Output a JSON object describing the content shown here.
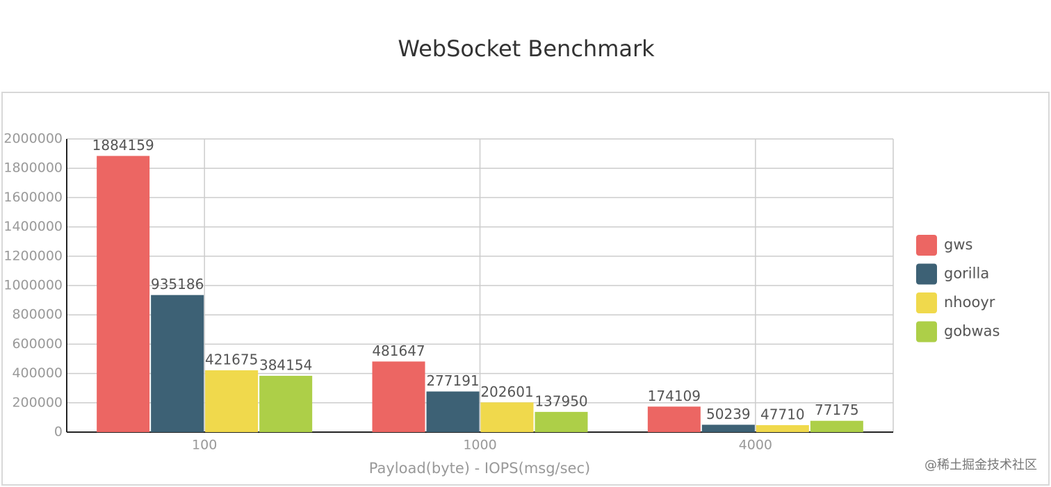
{
  "chart_data": {
    "type": "bar",
    "title": "WebSocket Benchmark",
    "x_label": "Payload(byte) - IOPS(msg/sec)",
    "categories": [
      "100",
      "1000",
      "4000"
    ],
    "series": [
      {
        "name": "gws",
        "color": "#ec6663",
        "values": [
          1884159,
          481647,
          174109
        ]
      },
      {
        "name": "gorilla",
        "color": "#3d6175",
        "values": [
          935186,
          277191,
          50239
        ]
      },
      {
        "name": "nhooyr",
        "color": "#f0d94c",
        "values": [
          421675,
          202601,
          47710
        ]
      },
      {
        "name": "gobwas",
        "color": "#adcf48",
        "values": [
          384154,
          137950,
          77175
        ]
      }
    ],
    "ylim": [
      0,
      2000000
    ],
    "yticks": [
      0,
      200000,
      400000,
      600000,
      800000,
      1000000,
      1200000,
      1400000,
      1600000,
      1800000,
      2000000
    ],
    "grid": true,
    "legend": "right",
    "data_labels": true
  },
  "watermark": "@稀土掘金技术社区"
}
